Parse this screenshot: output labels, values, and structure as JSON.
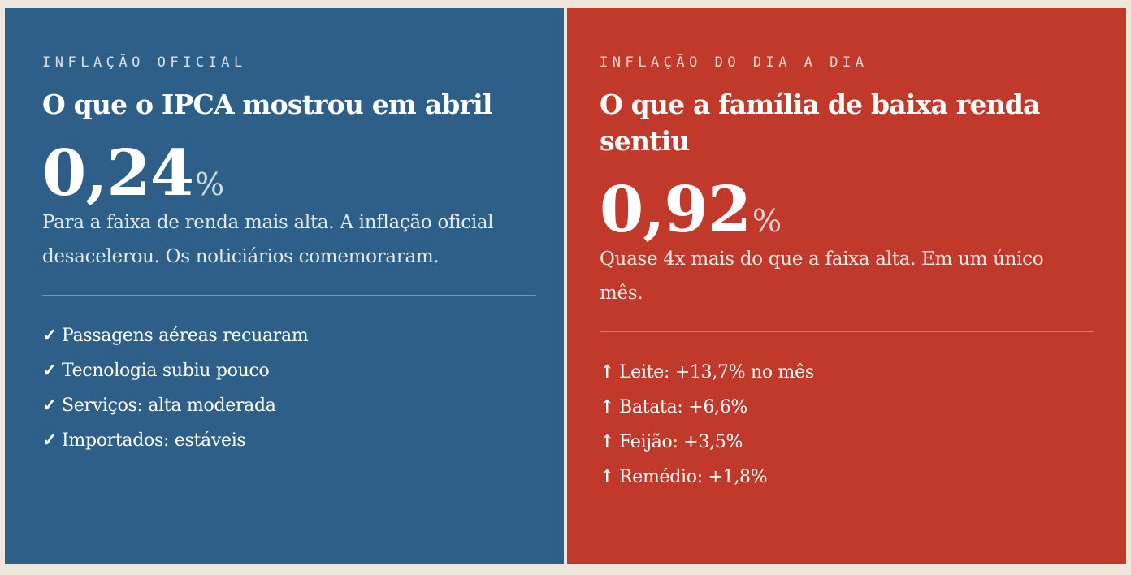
{
  "left": {
    "eyebrow": "INFLAÇÃO OFICIAL",
    "headline": "O que o IPCA mostrou em abril",
    "stat_value": "0,24",
    "stat_unit": "%",
    "description": "Para a faixa de renda mais alta. A inflação oficial desacelerou. Os noticiários comemoraram.",
    "bullet_mark": "✓",
    "items": [
      "Passagens aéreas recuaram",
      "Tecnologia subiu pouco",
      "Serviços: alta moderada",
      "Importados: estáveis"
    ],
    "color": "#2d5f89"
  },
  "right": {
    "eyebrow": "INFLAÇÃO DO DIA A DIA",
    "headline": "O que a família de baixa renda sentiu",
    "stat_value": "0,92",
    "stat_unit": "%",
    "description": "Quase 4x mais do que a faixa alta. Em um único mês.",
    "bullet_mark": "↑",
    "items": [
      "Leite: +13,7% no mês",
      "Batata: +6,6%",
      "Feijão: +3,5%",
      "Remédio: +1,8%"
    ],
    "color": "#c0392b"
  }
}
